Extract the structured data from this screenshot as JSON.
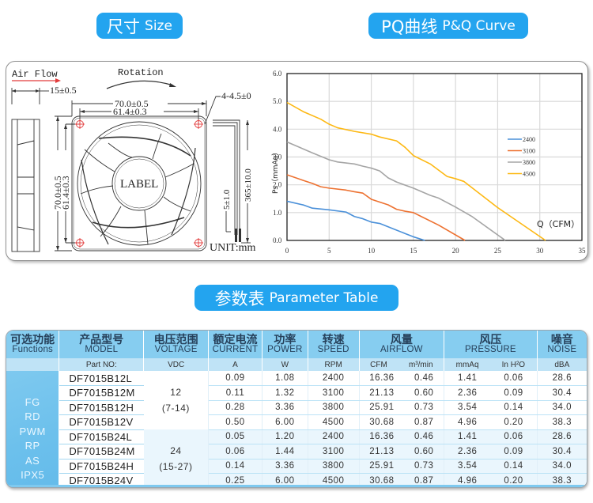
{
  "headings": {
    "size": {
      "cn": "尺寸",
      "en": "Size"
    },
    "pq": {
      "cn": "PQ曲线",
      "en": "P&Q Curve"
    },
    "param": {
      "cn": "参数表",
      "en": "Parameter Table"
    }
  },
  "drawing": {
    "air_flow": "Air Flow",
    "rotation": "Rotation",
    "depth": "15±0.5",
    "outer_width": "70.0±0.5",
    "hole_spacing": "61.4±0.3",
    "hole_dia": "4-4.5±0",
    "outer_height": "70.0±0.5",
    "hole_spacing_v": "61.4±0.3",
    "label": "LABEL",
    "lead_strip": "5±1.0",
    "lead_length": "365±10.0",
    "unit": "UNIT:mm"
  },
  "chart_data": {
    "type": "line",
    "title": "PQ曲线 P&Q Curve",
    "xlabel": "Q（CFM）",
    "ylabel": "Ps（mmAq）",
    "xlim": [
      0,
      35
    ],
    "ylim": [
      0,
      6
    ],
    "xticks": [
      0,
      5,
      10,
      15,
      20,
      25,
      30,
      35
    ],
    "yticks": [
      "0.0",
      "1.0",
      "2.0",
      "3.0",
      "4.0",
      "5.0",
      "6.0"
    ],
    "grid": true,
    "legend_position": "right-middle",
    "series": [
      {
        "name": "2400",
        "color": "#4a90d9",
        "x": [
          0,
          2,
          3,
          5,
          7,
          8,
          9,
          10,
          11,
          12,
          13,
          14,
          15,
          16.36
        ],
        "y": [
          1.41,
          1.27,
          1.16,
          1.1,
          1.02,
          0.86,
          0.78,
          0.66,
          0.61,
          0.49,
          0.37,
          0.25,
          0.13,
          0.0
        ]
      },
      {
        "name": "3100",
        "color": "#ed7130",
        "x": [
          0,
          2,
          3,
          4,
          5,
          7,
          8,
          9,
          10,
          11,
          12,
          13,
          14,
          15,
          16,
          18,
          21.13
        ],
        "y": [
          2.36,
          2.15,
          2.05,
          1.93,
          1.88,
          1.81,
          1.75,
          1.7,
          1.48,
          1.38,
          1.28,
          1.12,
          1.05,
          1.0,
          0.85,
          0.55,
          0.0
        ]
      },
      {
        "name": "3800",
        "color": "#a5a5a5",
        "x": [
          0,
          3,
          5,
          6,
          8,
          9,
          10,
          11,
          12,
          13,
          15,
          17,
          18,
          20,
          22,
          25.91
        ],
        "y": [
          3.54,
          3.15,
          2.9,
          2.82,
          2.75,
          2.67,
          2.6,
          2.5,
          2.25,
          2.1,
          1.88,
          1.62,
          1.52,
          1.2,
          0.85,
          0.0
        ]
      },
      {
        "name": "4500",
        "color": "#fdb813",
        "x": [
          0,
          2,
          4,
          5,
          6,
          8,
          10,
          11,
          13,
          14,
          15,
          17,
          19,
          20,
          21,
          23,
          25,
          30.68
        ],
        "y": [
          4.96,
          4.62,
          4.36,
          4.18,
          4.05,
          3.92,
          3.82,
          3.72,
          3.58,
          3.35,
          3.05,
          2.75,
          2.3,
          2.22,
          2.12,
          1.65,
          1.18,
          0.0
        ]
      }
    ]
  },
  "table": {
    "headers": [
      {
        "cn": "可选功能",
        "en": "Functions"
      },
      {
        "cn": "产品型号",
        "en": "MODEL"
      },
      {
        "cn": "电压范围",
        "en": "VOLTAGE"
      },
      {
        "cn": "额定电流",
        "en": "CURRENT"
      },
      {
        "cn": "功率",
        "en": "POWER"
      },
      {
        "cn": "转速",
        "en": "SPEED"
      },
      {
        "cn": "风量",
        "en": "AIRFLOW"
      },
      {
        "cn": "风压",
        "en": "PRESSURE"
      },
      {
        "cn": "噪音",
        "en": "NOISE"
      }
    ],
    "units": {
      "functions": "",
      "model": "Part NO:",
      "voltage": "VDC",
      "current": "A",
      "power": "W",
      "speed": "RPM",
      "airflow_cfm": "CFM",
      "airflow_m3": "m³/min",
      "pressure_mmaq": "mmAq",
      "pressure_inh2o": "In H²O",
      "noise": "dBA"
    },
    "functions": [
      "FG",
      "RD",
      "PWM",
      "RP",
      "AS",
      "IPX5"
    ],
    "voltage_groups": [
      {
        "value": "12",
        "range": "(7-14)"
      },
      {
        "value": "24",
        "range": "(15-27)"
      }
    ],
    "rows": [
      {
        "model": "DF7015B12L",
        "current": "0.09",
        "power": "1.08",
        "speed": "2400",
        "cfm": "16.36",
        "m3": "0.46",
        "mmaq": "1.41",
        "inh2o": "0.06",
        "noise": "28.6"
      },
      {
        "model": "DF7015B12M",
        "current": "0.11",
        "power": "1.32",
        "speed": "3100",
        "cfm": "21.13",
        "m3": "0.60",
        "mmaq": "2.36",
        "inh2o": "0.09",
        "noise": "30.4"
      },
      {
        "model": "DF7015B12H",
        "current": "0.28",
        "power": "3.36",
        "speed": "3800",
        "cfm": "25.91",
        "m3": "0.73",
        "mmaq": "3.54",
        "inh2o": "0.14",
        "noise": "34.0"
      },
      {
        "model": "DF7015B12V",
        "current": "0.50",
        "power": "6.00",
        "speed": "4500",
        "cfm": "30.68",
        "m3": "0.87",
        "mmaq": "4.96",
        "inh2o": "0.20",
        "noise": "38.3"
      },
      {
        "model": "DF7015B24L",
        "current": "0.05",
        "power": "1.20",
        "speed": "2400",
        "cfm": "16.36",
        "m3": "0.46",
        "mmaq": "1.41",
        "inh2o": "0.06",
        "noise": "28.6"
      },
      {
        "model": "DF7015B24M",
        "current": "0.06",
        "power": "1.44",
        "speed": "3100",
        "cfm": "21.13",
        "m3": "0.60",
        "mmaq": "2.36",
        "inh2o": "0.09",
        "noise": "30.4"
      },
      {
        "model": "DF7015B24H",
        "current": "0.14",
        "power": "3.36",
        "speed": "3800",
        "cfm": "25.91",
        "m3": "0.73",
        "mmaq": "3.54",
        "inh2o": "0.14",
        "noise": "34.0"
      },
      {
        "model": "DF7015B24V",
        "current": "0.25",
        "power": "6.00",
        "speed": "4500",
        "cfm": "30.68",
        "m3": "0.87",
        "mmaq": "4.96",
        "inh2o": "0.20",
        "noise": "38.3"
      }
    ]
  }
}
